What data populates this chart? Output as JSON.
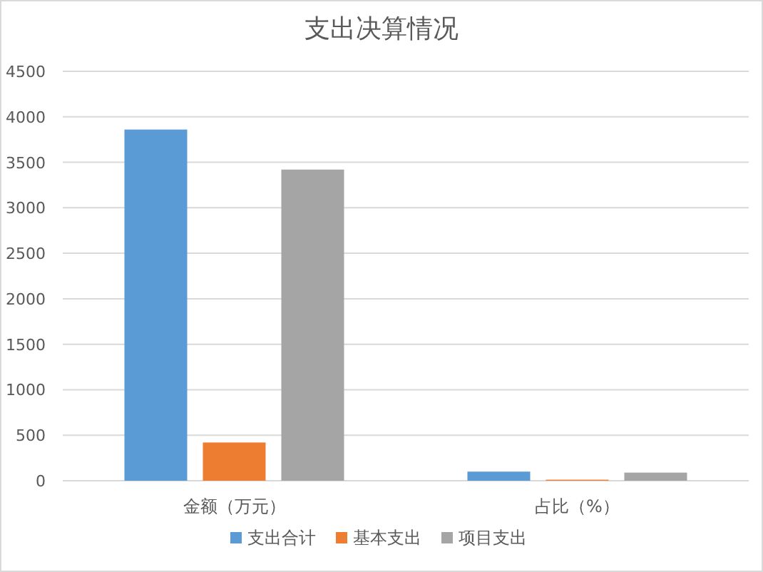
{
  "chart_data": {
    "type": "bar",
    "title": "支出决算情况",
    "categories": [
      "金额（万元）",
      "占比（%）"
    ],
    "series": [
      {
        "name": "支出合计",
        "color": "#5b9bd5",
        "values": [
          3860,
          100
        ]
      },
      {
        "name": "基本支出",
        "color": "#ed7d31",
        "values": [
          420,
          11
        ]
      },
      {
        "name": "项目支出",
        "color": "#a5a5a5",
        "values": [
          3420,
          89
        ]
      }
    ],
    "ylim": [
      0,
      4500
    ],
    "yticks": [
      0,
      500,
      1000,
      1500,
      2000,
      2500,
      3000,
      3500,
      4000,
      4500
    ],
    "grid": "y",
    "legend": "bottom"
  }
}
